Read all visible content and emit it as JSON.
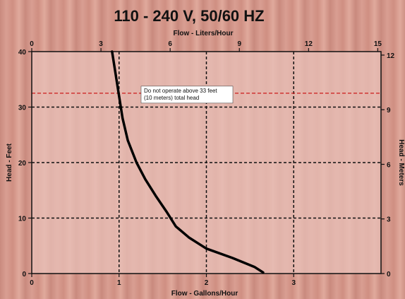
{
  "chart_data": {
    "type": "line",
    "title": "110 - 240 V, 50/60 HZ",
    "xlabel_bottom": "Flow - Gallons/Hour",
    "xlabel_top": "Flow - Liters/Hour",
    "ylabel_left": "Head - Feet",
    "ylabel_right": "Head - Meters",
    "x_bottom_ticks": [
      "0",
      "1",
      "2",
      "3"
    ],
    "x_top_ticks": [
      "0",
      "3",
      "6",
      "9",
      "12",
      "15"
    ],
    "y_left_ticks": [
      "0",
      "10",
      "20",
      "30",
      "40"
    ],
    "y_right_ticks": [
      "0",
      "3",
      "6",
      "9",
      "12"
    ],
    "xlim": [
      0,
      4
    ],
    "ylim": [
      0,
      40
    ],
    "grid": true,
    "series": [
      {
        "x": [
          0.92,
          0.97,
          1.0,
          1.04,
          1.1,
          1.2,
          1.3,
          1.42,
          1.55,
          1.65,
          1.8,
          2.0,
          2.3,
          2.55,
          2.65
        ],
        "y": [
          40,
          35,
          32,
          28,
          24,
          20,
          17,
          14,
          11,
          8.5,
          6.5,
          4.5,
          2.8,
          1.2,
          0.2
        ]
      }
    ],
    "annotation": {
      "text_lines": [
        "Do not operate above 33 feet",
        "(10 meters) total head"
      ],
      "y": 32.5,
      "color": "#cc1a1a"
    }
  }
}
